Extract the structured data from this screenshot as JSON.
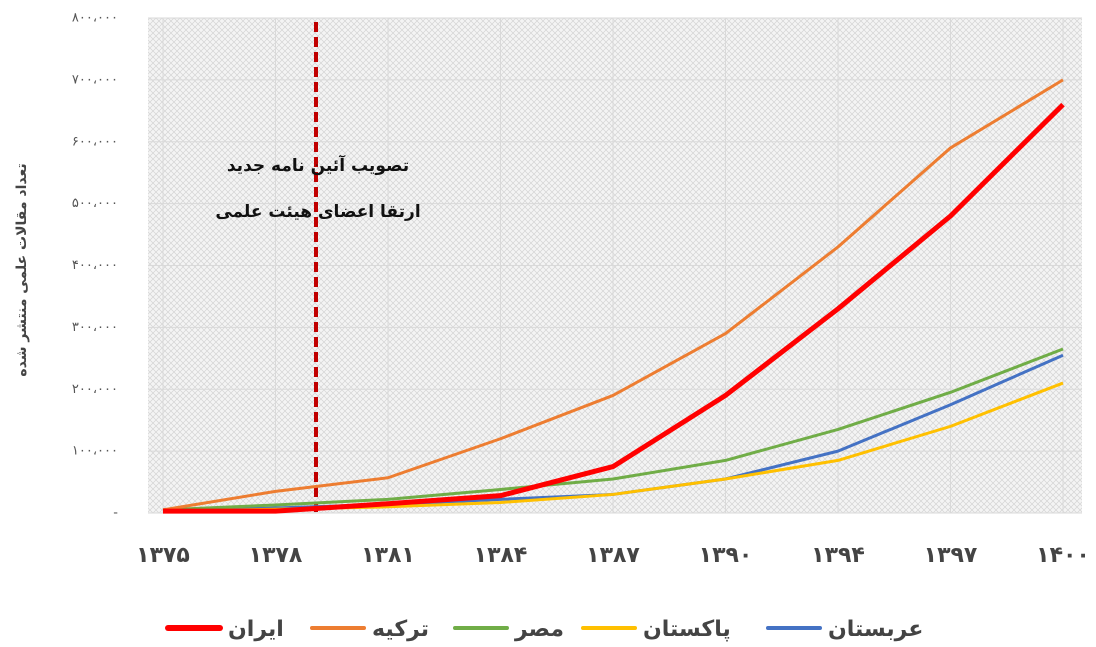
{
  "chart_data": {
    "type": "line",
    "y_label": "تعداد مقالات علمی منتشر شده",
    "annotation": [
      "تصویب آئین نامه جدید",
      "ارتقا اعضای هیئت علمی"
    ],
    "categories": [
      "۱۳۷۵",
      "۱۳۷۸",
      "۱۳۸۱",
      "۱۳۸۴",
      "۱۳۸۷",
      "۱۳۹۰",
      "۱۳۹۴",
      "۱۳۹۷",
      "۱۴۰۰"
    ],
    "ylim": [
      0,
      800000
    ],
    "yticks": [
      {
        "value": 0,
        "label": "-"
      },
      {
        "value": 100000,
        "label": "۱۰۰،۰۰۰"
      },
      {
        "value": 200000,
        "label": "۲۰۰،۰۰۰"
      },
      {
        "value": 300000,
        "label": "۳۰۰،۰۰۰"
      },
      {
        "value": 400000,
        "label": "۴۰۰،۰۰۰"
      },
      {
        "value": 500000,
        "label": "۵۰۰،۰۰۰"
      },
      {
        "value": 600000,
        "label": "۶۰۰،۰۰۰"
      },
      {
        "value": 700000,
        "label": "۷۰۰،۰۰۰"
      },
      {
        "value": 800000,
        "label": "۸۰۰،۰۰۰"
      }
    ],
    "grid": true,
    "legend": "bottom",
    "series": [
      {
        "name": "ایران",
        "color": "#ff0000",
        "values": [
          3000,
          3000,
          15000,
          28000,
          75000,
          190000,
          330000,
          480000,
          660000
        ]
      },
      {
        "name": "ترکیه",
        "color": "#ed7d31",
        "values": [
          5000,
          35000,
          57000,
          120000,
          190000,
          290000,
          430000,
          590000,
          700000
        ]
      },
      {
        "name": "مصر",
        "color": "#70ad47",
        "values": [
          5000,
          13000,
          22000,
          38000,
          55000,
          85000,
          135000,
          195000,
          265000
        ]
      },
      {
        "name": "پاکستان",
        "color": "#ffc000",
        "values": [
          3000,
          6000,
          10000,
          17000,
          30000,
          55000,
          85000,
          140000,
          210000
        ]
      },
      {
        "name": "عربستان",
        "color": "#4472c4",
        "values": [
          4000,
          8000,
          14000,
          22000,
          30000,
          55000,
          100000,
          175000,
          255000
        ]
      }
    ]
  }
}
